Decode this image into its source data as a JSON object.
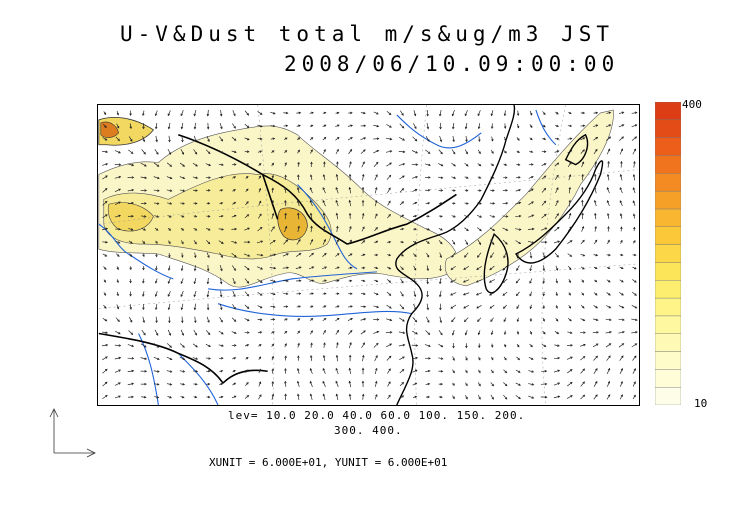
{
  "title": {
    "line1": "U-V&Dust total m/s&ug/m3 JST",
    "line2": "2008/06/10.09:00:00"
  },
  "colorbar": {
    "max_label": "400",
    "min_label": "10",
    "colors": [
      "#fefee8",
      "#fefdd8",
      "#fefcc8",
      "#fefab5",
      "#fef8a0",
      "#fef488",
      "#feee70",
      "#fde55a",
      "#fcd848",
      "#fbc83a",
      "#f9b630",
      "#f7a028",
      "#f48a22",
      "#f0741d",
      "#ec5e19",
      "#e44c17",
      "#dc3d15"
    ]
  },
  "levels": {
    "line1": "lev= 10.0 20.0 40.0 60.0 100. 150. 200.",
    "line2": "300. 400."
  },
  "units": {
    "text": "XUNIT = 6.000E+01, YUNIT = 6.000E+01"
  },
  "map_colors": {
    "dust_light": "#fbf6c8",
    "dust_mid": "#f7ec9a",
    "dust_high": "#f2d860",
    "dust_peak": "#e9b535",
    "rivers": "#1f63d8",
    "coast": "#000000"
  }
}
